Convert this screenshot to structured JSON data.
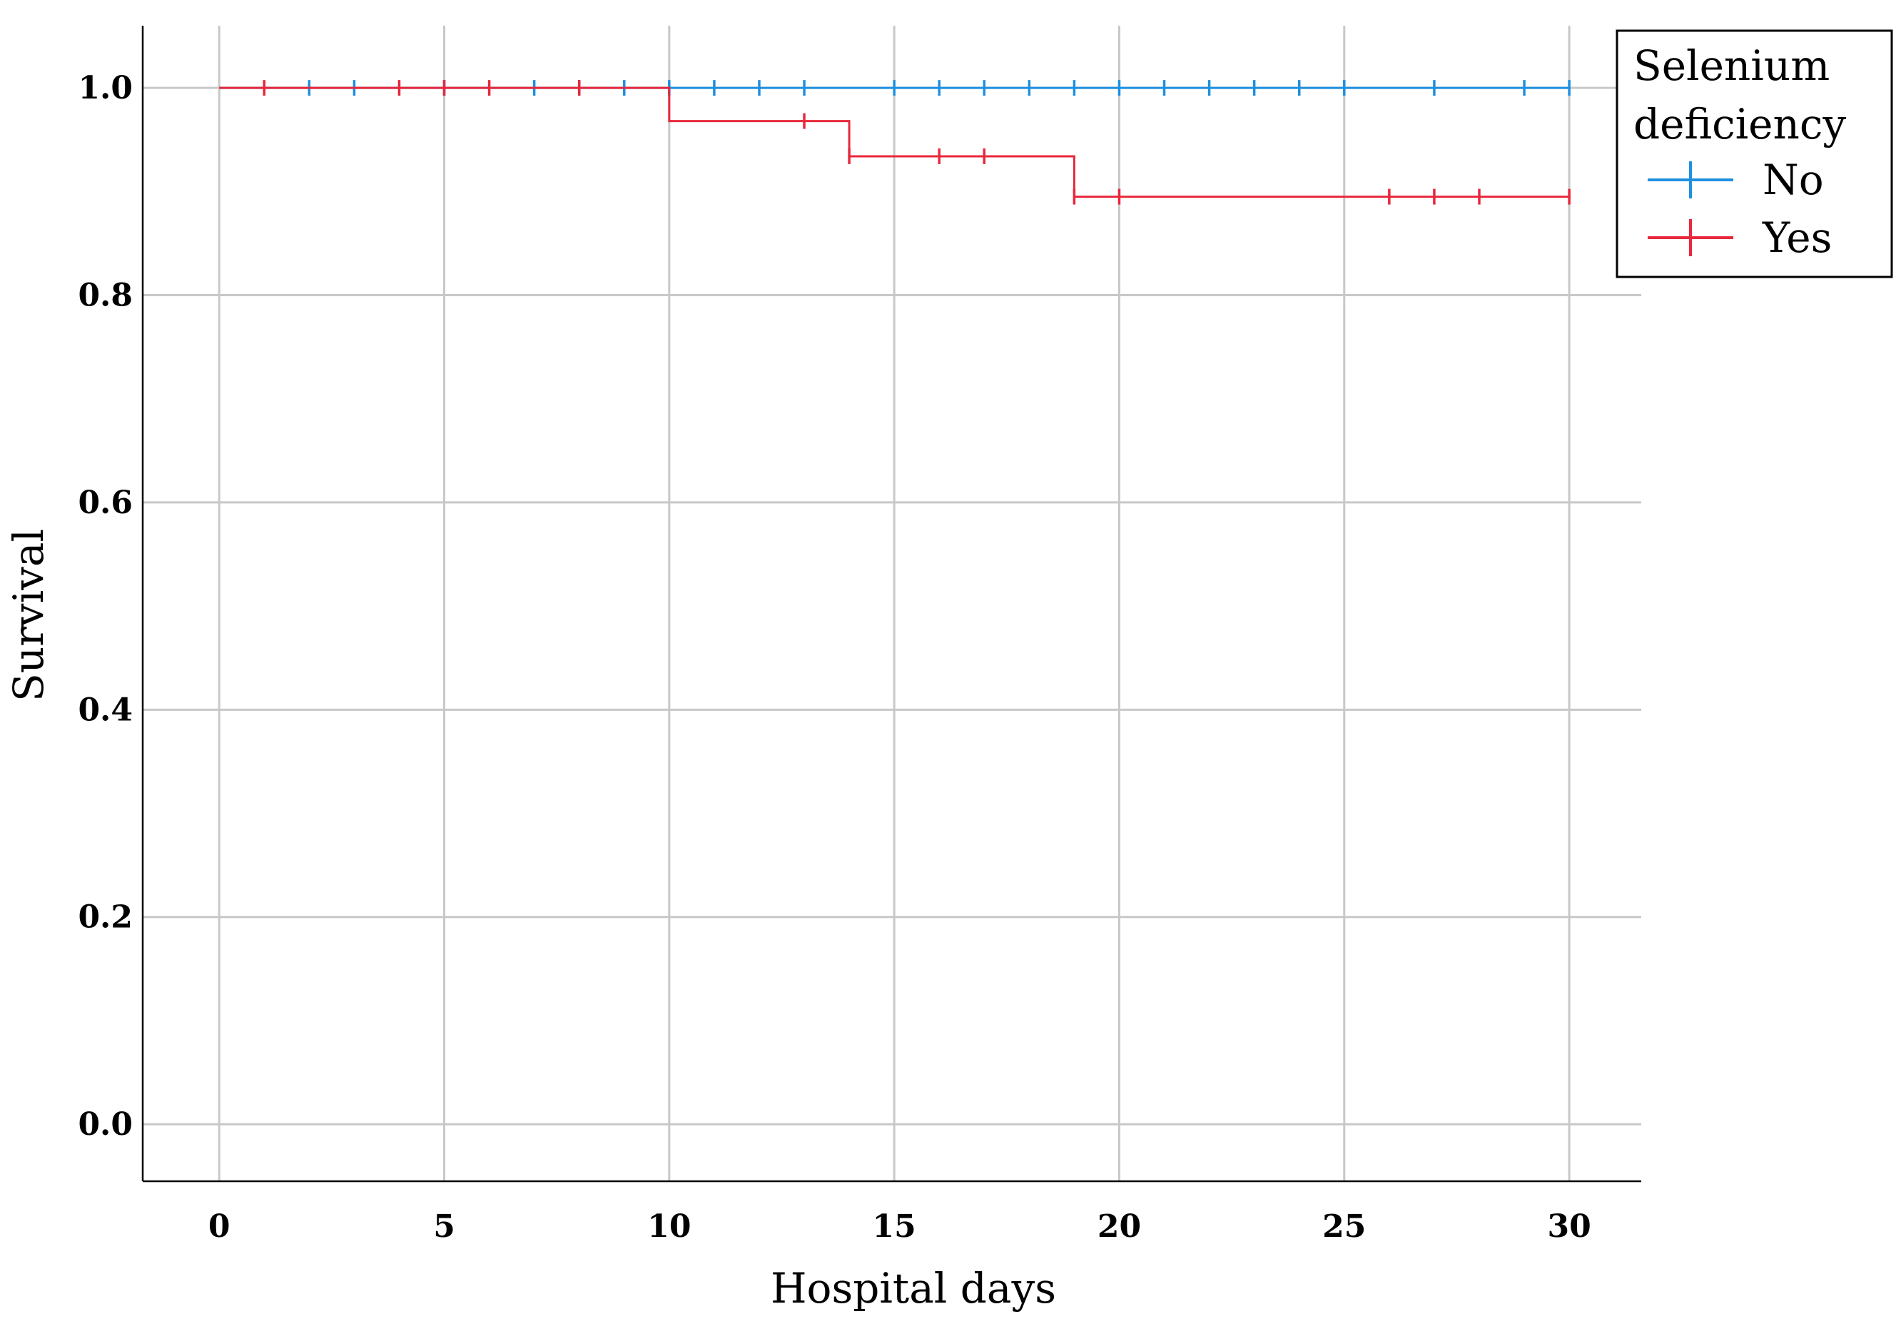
{
  "chart_data": {
    "type": "line",
    "subtype": "kaplan-meier-step",
    "title": "",
    "xlabel": "Hospital days",
    "ylabel": "Survival",
    "xlim": [
      -1.7,
      31.6
    ],
    "ylim": [
      -0.055,
      1.06
    ],
    "x_ticks": [
      0,
      5,
      10,
      15,
      20,
      25,
      30
    ],
    "y_ticks": [
      0.0,
      0.2,
      0.4,
      0.6,
      0.8,
      1.0
    ],
    "x_tick_labels": [
      "0",
      "5",
      "10",
      "15",
      "20",
      "25",
      "30"
    ],
    "y_tick_labels": [
      "0.0",
      "0.2",
      "0.4",
      "0.6",
      "0.8",
      "1.0"
    ],
    "grid": true,
    "legend": {
      "title": "Selenium deficiency",
      "title_lines": [
        "Selenium",
        "deficiency"
      ],
      "placement": "top-right, outside plot"
    },
    "series": [
      {
        "name": "No",
        "color": "#1e90e0",
        "steps": [
          [
            0,
            1.0
          ],
          [
            30,
            1.0
          ]
        ],
        "censored_x": [
          2,
          3,
          5,
          7,
          8,
          9,
          10,
          11,
          12,
          13,
          15,
          16,
          17,
          18,
          19,
          20,
          21,
          22,
          23,
          24,
          25,
          27,
          29,
          30
        ],
        "censored_y": [
          1.0,
          1.0,
          1.0,
          1.0,
          1.0,
          1.0,
          1.0,
          1.0,
          1.0,
          1.0,
          1.0,
          1.0,
          1.0,
          1.0,
          1.0,
          1.0,
          1.0,
          1.0,
          1.0,
          1.0,
          1.0,
          1.0,
          1.0,
          1.0
        ]
      },
      {
        "name": "Yes",
        "color": "#e8283c",
        "steps": [
          [
            0,
            1.0
          ],
          [
            10,
            0.968
          ],
          [
            14,
            0.934
          ],
          [
            19,
            0.895
          ],
          [
            30,
            0.895
          ]
        ],
        "censored_x": [
          1,
          4,
          5,
          6,
          8,
          13,
          14,
          16,
          17,
          19,
          20,
          26,
          27,
          28,
          30
        ],
        "censored_y": [
          1.0,
          1.0,
          1.0,
          1.0,
          1.0,
          0.968,
          0.934,
          0.934,
          0.934,
          0.895,
          0.895,
          0.895,
          0.895,
          0.895,
          0.895
        ]
      }
    ]
  }
}
